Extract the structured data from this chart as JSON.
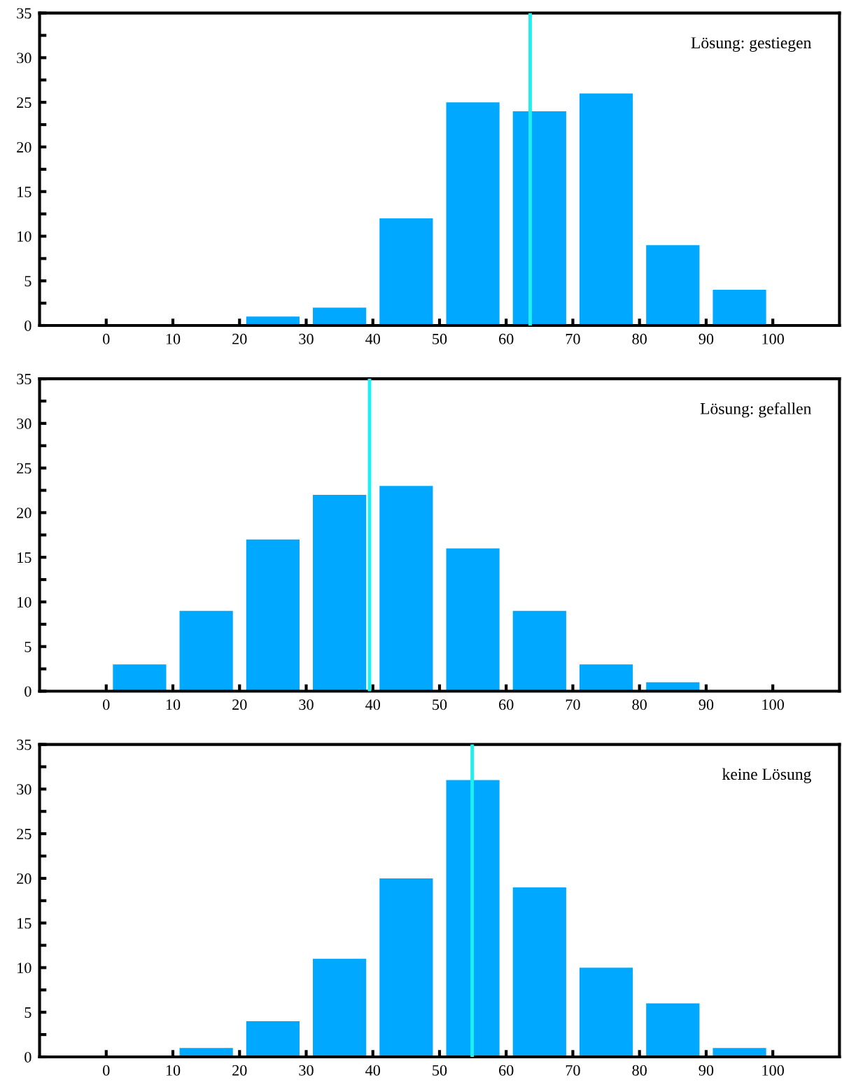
{
  "chart_data": [
    {
      "type": "histogram",
      "bins": [
        0,
        10,
        20,
        30,
        40,
        50,
        60,
        70,
        80,
        90,
        100
      ],
      "values": [
        0,
        0,
        1,
        2,
        12,
        25,
        24,
        26,
        9,
        4
      ],
      "color": "#00a8ff",
      "xlim": [
        -10,
        110
      ],
      "xticks": [
        0,
        10,
        20,
        30,
        40,
        50,
        60,
        70,
        80,
        90,
        100
      ],
      "ylim": [
        0,
        35
      ],
      "yticks": [
        0,
        {
          "value": 2.5,
          "label": null
        },
        5,
        {
          "value": 7.5,
          "label": null
        },
        10,
        {
          "value": 12.5,
          "label": null
        },
        15,
        {
          "value": 17.5,
          "label": null
        },
        20,
        {
          "value": 22.5,
          "label": null
        },
        25,
        {
          "value": 27.5,
          "label": null
        },
        30,
        {
          "value": 32.5,
          "label": null
        },
        35
      ],
      "ref_lines": [
        {
          "axis": "x",
          "value": 63.6,
          "color": "#1ef0f0"
        }
      ],
      "annotations": [
        "Lösung: gestiegen"
      ],
      "grid": false
    },
    {
      "type": "histogram",
      "bins": [
        0,
        10,
        20,
        30,
        40,
        50,
        60,
        70,
        80,
        90,
        100
      ],
      "values": [
        3,
        9,
        17,
        22,
        23,
        16,
        9,
        3,
        1,
        0
      ],
      "color": "#00a8ff",
      "xlim": [
        -10,
        110
      ],
      "xticks": [
        0,
        10,
        20,
        30,
        40,
        50,
        60,
        70,
        80,
        90,
        100
      ],
      "ylim": [
        0,
        35
      ],
      "yticks": [
        0,
        {
          "value": 2.5,
          "label": null
        },
        5,
        {
          "value": 7.5,
          "label": null
        },
        10,
        {
          "value": 12.5,
          "label": null
        },
        15,
        {
          "value": 17.5,
          "label": null
        },
        20,
        {
          "value": 22.5,
          "label": null
        },
        25,
        {
          "value": 27.5,
          "label": null
        },
        30,
        {
          "value": 32.5,
          "label": null
        },
        35
      ],
      "ref_lines": [
        {
          "axis": "x",
          "value": 39.5,
          "color": "#1ef0f0"
        }
      ],
      "annotations": [
        "Lösung: gefallen"
      ],
      "grid": false
    },
    {
      "type": "histogram",
      "bins": [
        0,
        10,
        20,
        30,
        40,
        50,
        60,
        70,
        80,
        90,
        100
      ],
      "values": [
        0,
        1,
        4,
        11,
        20,
        31,
        19,
        10,
        6,
        1
      ],
      "color": "#00a8ff",
      "xlim": [
        -10,
        110
      ],
      "xticks": [
        0,
        10,
        20,
        30,
        40,
        50,
        60,
        70,
        80,
        90,
        100
      ],
      "ylim": [
        0,
        35
      ],
      "yticks": [
        0,
        {
          "value": 2.5,
          "label": null
        },
        5,
        {
          "value": 7.5,
          "label": null
        },
        10,
        {
          "value": 12.5,
          "label": null
        },
        15,
        {
          "value": 17.5,
          "label": null
        },
        20,
        {
          "value": 22.5,
          "label": null
        },
        25,
        {
          "value": 27.5,
          "label": null
        },
        30,
        {
          "value": 32.5,
          "label": null
        },
        35
      ],
      "ref_lines": [
        {
          "axis": "x",
          "value": 54.9,
          "color": "#1ef0f0"
        }
      ],
      "annotations": [
        "keine Lösung"
      ],
      "grid": false
    }
  ]
}
